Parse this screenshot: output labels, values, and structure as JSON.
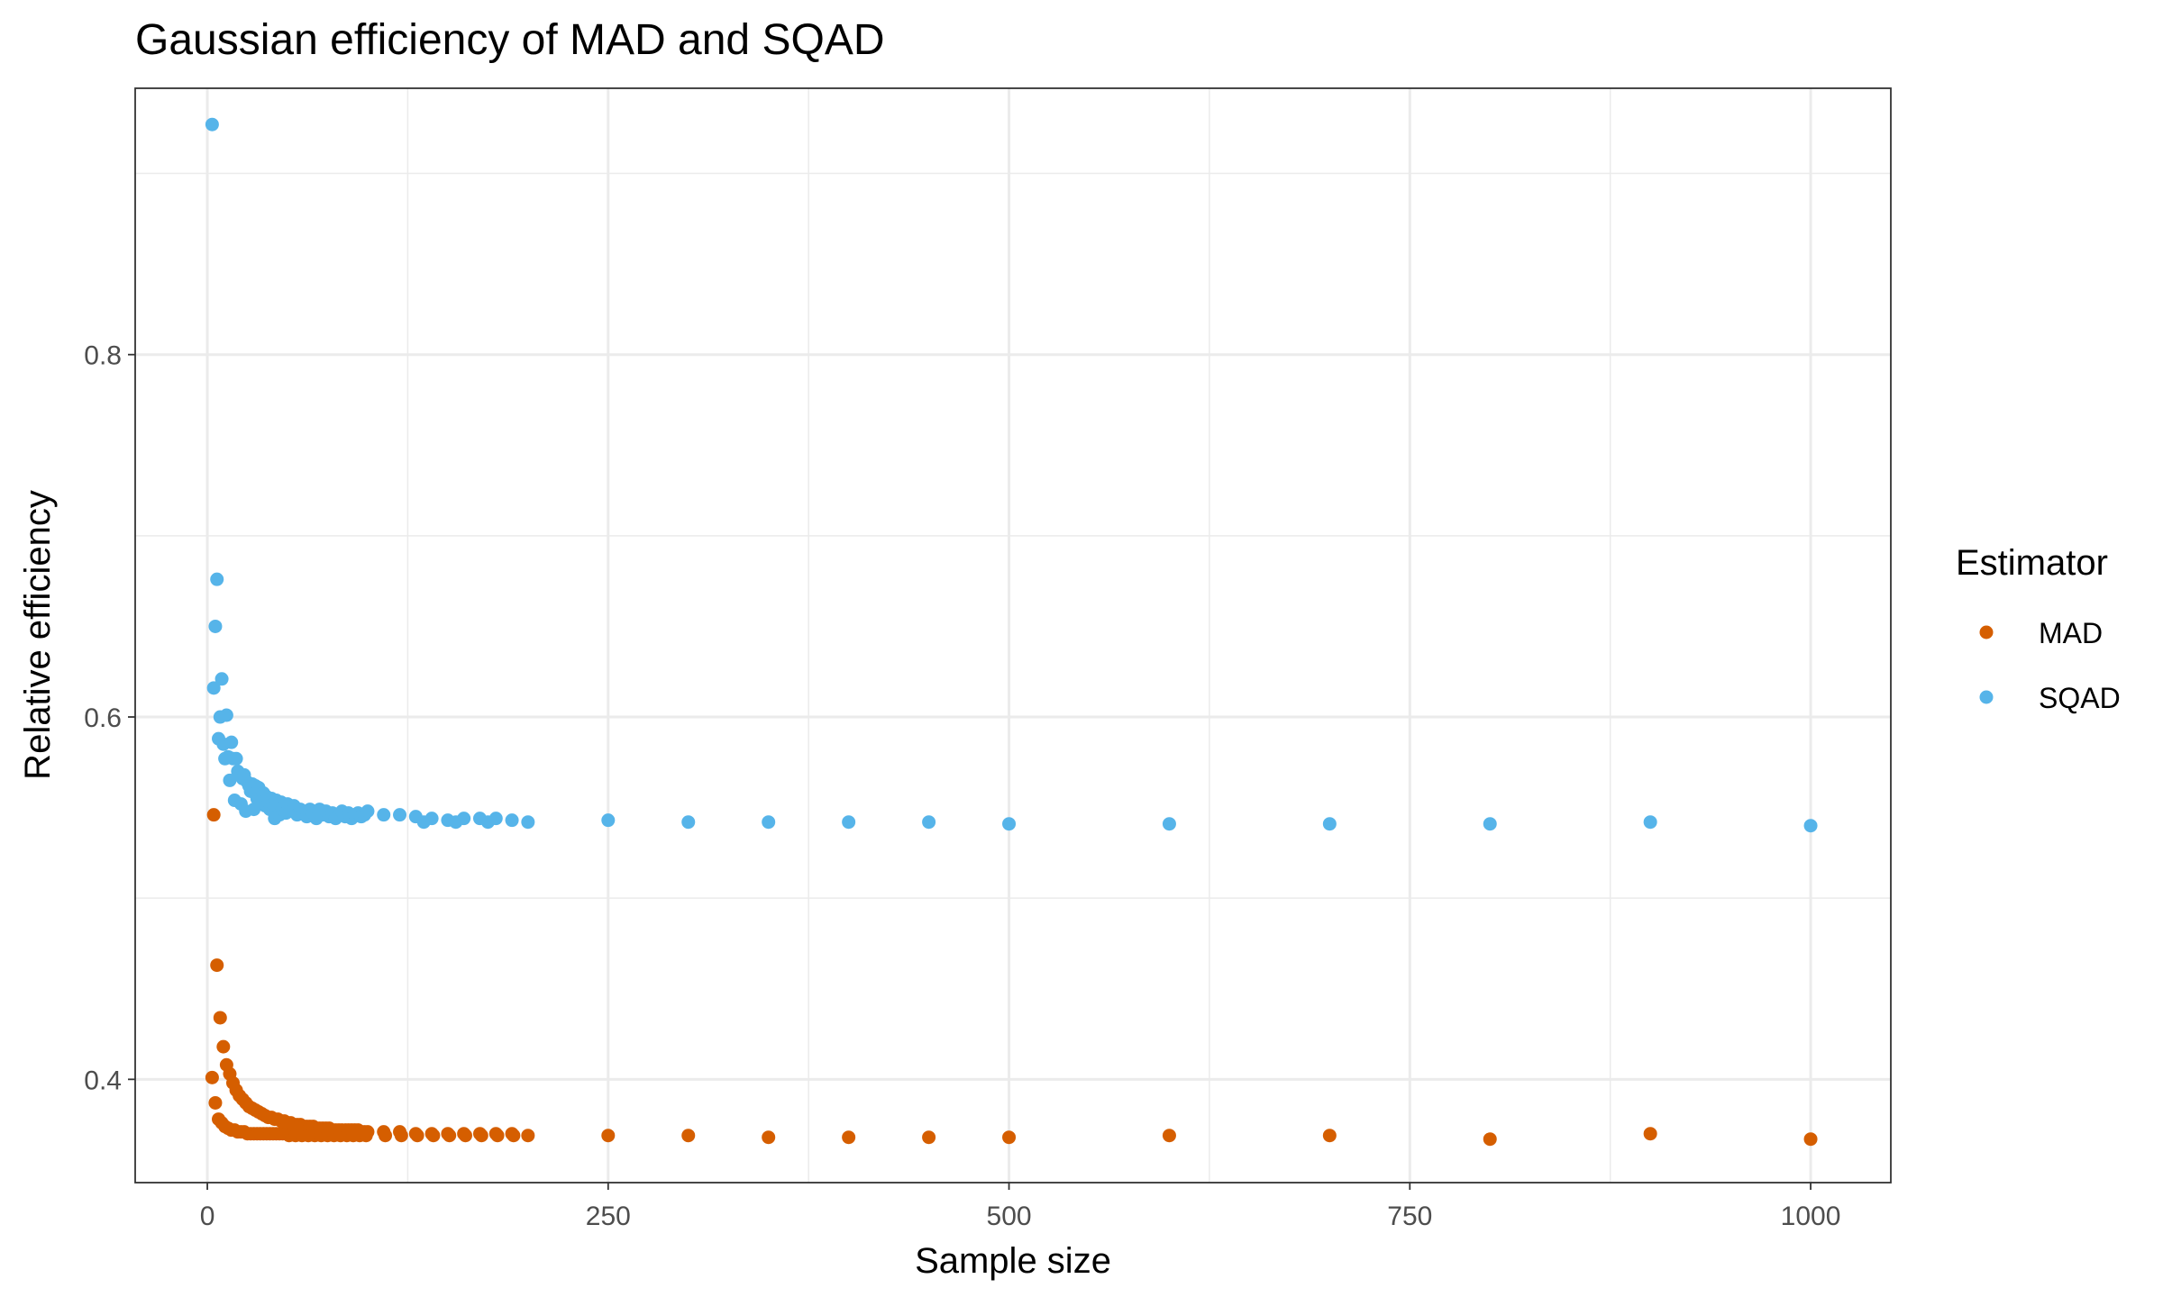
{
  "chart_data": {
    "type": "scatter",
    "title": "Gaussian efficiency of MAD and SQAD",
    "xlabel": "Sample size",
    "ylabel": "Relative efficiency",
    "xlim": [
      -45,
      1050
    ],
    "ylim": [
      0.343,
      0.947
    ],
    "x_ticks": [
      0,
      250,
      500,
      750,
      1000
    ],
    "x_tick_labels": [
      "0",
      "250",
      "500",
      "750",
      "1000"
    ],
    "y_ticks": [
      0.4,
      0.6,
      0.8
    ],
    "y_tick_labels": [
      "0.4",
      "0.6",
      "0.8"
    ],
    "grid": true,
    "legend": {
      "title": "Estimator",
      "position": "right"
    },
    "series": [
      {
        "name": "MAD",
        "color": "#D55E00",
        "points": [
          [
            3,
            0.401
          ],
          [
            4,
            0.546
          ],
          [
            5,
            0.387
          ],
          [
            6,
            0.463
          ],
          [
            7,
            0.378
          ],
          [
            8,
            0.434
          ],
          [
            9,
            0.376
          ],
          [
            10,
            0.418
          ],
          [
            11,
            0.374
          ],
          [
            12,
            0.408
          ],
          [
            13,
            0.373
          ],
          [
            14,
            0.403
          ],
          [
            15,
            0.372
          ],
          [
            16,
            0.398
          ],
          [
            17,
            0.372
          ],
          [
            18,
            0.394
          ],
          [
            19,
            0.371
          ],
          [
            20,
            0.391
          ],
          [
            21,
            0.371
          ],
          [
            22,
            0.389
          ],
          [
            23,
            0.371
          ],
          [
            24,
            0.387
          ],
          [
            25,
            0.37
          ],
          [
            26,
            0.385
          ],
          [
            27,
            0.37
          ],
          [
            28,
            0.384
          ],
          [
            29,
            0.37
          ],
          [
            30,
            0.383
          ],
          [
            31,
            0.37
          ],
          [
            32,
            0.382
          ],
          [
            33,
            0.37
          ],
          [
            34,
            0.381
          ],
          [
            35,
            0.37
          ],
          [
            36,
            0.38
          ],
          [
            37,
            0.37
          ],
          [
            38,
            0.379
          ],
          [
            39,
            0.37
          ],
          [
            40,
            0.379
          ],
          [
            41,
            0.37
          ],
          [
            42,
            0.378
          ],
          [
            43,
            0.37
          ],
          [
            44,
            0.378
          ],
          [
            45,
            0.37
          ],
          [
            46,
            0.377
          ],
          [
            47,
            0.37
          ],
          [
            48,
            0.377
          ],
          [
            49,
            0.37
          ],
          [
            50,
            0.376
          ],
          [
            52,
            0.376
          ],
          [
            54,
            0.375
          ],
          [
            56,
            0.375
          ],
          [
            58,
            0.375
          ],
          [
            60,
            0.374
          ],
          [
            62,
            0.374
          ],
          [
            64,
            0.374
          ],
          [
            66,
            0.374
          ],
          [
            68,
            0.373
          ],
          [
            70,
            0.373
          ],
          [
            72,
            0.373
          ],
          [
            74,
            0.373
          ],
          [
            76,
            0.373
          ],
          [
            78,
            0.372
          ],
          [
            80,
            0.372
          ],
          [
            82,
            0.372
          ],
          [
            84,
            0.372
          ],
          [
            86,
            0.372
          ],
          [
            88,
            0.372
          ],
          [
            90,
            0.372
          ],
          [
            92,
            0.372
          ],
          [
            94,
            0.372
          ],
          [
            96,
            0.371
          ],
          [
            98,
            0.371
          ],
          [
            100,
            0.371
          ],
          [
            51,
            0.369
          ],
          [
            55,
            0.369
          ],
          [
            59,
            0.369
          ],
          [
            63,
            0.369
          ],
          [
            67,
            0.369
          ],
          [
            71,
            0.369
          ],
          [
            75,
            0.369
          ],
          [
            79,
            0.369
          ],
          [
            83,
            0.369
          ],
          [
            87,
            0.369
          ],
          [
            91,
            0.369
          ],
          [
            95,
            0.369
          ],
          [
            99,
            0.369
          ],
          [
            110,
            0.371
          ],
          [
            120,
            0.371
          ],
          [
            130,
            0.37
          ],
          [
            140,
            0.37
          ],
          [
            150,
            0.37
          ],
          [
            160,
            0.37
          ],
          [
            170,
            0.37
          ],
          [
            180,
            0.37
          ],
          [
            190,
            0.37
          ],
          [
            200,
            0.369
          ],
          [
            111,
            0.369
          ],
          [
            121,
            0.369
          ],
          [
            131,
            0.369
          ],
          [
            141,
            0.369
          ],
          [
            151,
            0.369
          ],
          [
            161,
            0.369
          ],
          [
            171,
            0.369
          ],
          [
            181,
            0.369
          ],
          [
            191,
            0.369
          ],
          [
            250,
            0.369
          ],
          [
            300,
            0.369
          ],
          [
            350,
            0.368
          ],
          [
            400,
            0.368
          ],
          [
            450,
            0.368
          ],
          [
            500,
            0.368
          ],
          [
            600,
            0.369
          ],
          [
            700,
            0.369
          ],
          [
            800,
            0.367
          ],
          [
            900,
            0.37
          ],
          [
            1000,
            0.367
          ]
        ]
      },
      {
        "name": "SQAD",
        "color": "#56B4E9",
        "points": [
          [
            3,
            0.927
          ],
          [
            4,
            0.616
          ],
          [
            5,
            0.65
          ],
          [
            6,
            0.676
          ],
          [
            7,
            0.588
          ],
          [
            8,
            0.6
          ],
          [
            9,
            0.621
          ],
          [
            10,
            0.585
          ],
          [
            11,
            0.577
          ],
          [
            12,
            0.601
          ],
          [
            13,
            0.578
          ],
          [
            14,
            0.565
          ],
          [
            15,
            0.586
          ],
          [
            16,
            0.577
          ],
          [
            17,
            0.554
          ],
          [
            18,
            0.577
          ],
          [
            19,
            0.57
          ],
          [
            20,
            0.568
          ],
          [
            21,
            0.552
          ],
          [
            22,
            0.566
          ],
          [
            23,
            0.568
          ],
          [
            24,
            0.548
          ],
          [
            25,
            0.564
          ],
          [
            26,
            0.562
          ],
          [
            27,
            0.559
          ],
          [
            28,
            0.563
          ],
          [
            29,
            0.549
          ],
          [
            30,
            0.562
          ],
          [
            31,
            0.555
          ],
          [
            32,
            0.561
          ],
          [
            33,
            0.553
          ],
          [
            34,
            0.556
          ],
          [
            35,
            0.558
          ],
          [
            36,
            0.551
          ],
          [
            37,
            0.556
          ],
          [
            38,
            0.554
          ],
          [
            39,
            0.549
          ],
          [
            40,
            0.555
          ],
          [
            41,
            0.552
          ],
          [
            42,
            0.544
          ],
          [
            43,
            0.554
          ],
          [
            44,
            0.55
          ],
          [
            45,
            0.546
          ],
          [
            46,
            0.553
          ],
          [
            47,
            0.549
          ],
          [
            48,
            0.551
          ],
          [
            49,
            0.547
          ],
          [
            50,
            0.552
          ],
          [
            52,
            0.548
          ],
          [
            54,
            0.551
          ],
          [
            56,
            0.546
          ],
          [
            58,
            0.549
          ],
          [
            60,
            0.547
          ],
          [
            62,
            0.545
          ],
          [
            64,
            0.549
          ],
          [
            66,
            0.547
          ],
          [
            68,
            0.544
          ],
          [
            70,
            0.549
          ],
          [
            72,
            0.546
          ],
          [
            74,
            0.548
          ],
          [
            76,
            0.545
          ],
          [
            78,
            0.547
          ],
          [
            80,
            0.544
          ],
          [
            82,
            0.546
          ],
          [
            84,
            0.548
          ],
          [
            86,
            0.545
          ],
          [
            88,
            0.547
          ],
          [
            90,
            0.544
          ],
          [
            92,
            0.546
          ],
          [
            94,
            0.547
          ],
          [
            96,
            0.545
          ],
          [
            98,
            0.546
          ],
          [
            100,
            0.548
          ],
          [
            110,
            0.546
          ],
          [
            120,
            0.546
          ],
          [
            130,
            0.545
          ],
          [
            135,
            0.542
          ],
          [
            140,
            0.544
          ],
          [
            150,
            0.543
          ],
          [
            155,
            0.542
          ],
          [
            160,
            0.544
          ],
          [
            170,
            0.544
          ],
          [
            175,
            0.542
          ],
          [
            180,
            0.544
          ],
          [
            190,
            0.543
          ],
          [
            200,
            0.542
          ],
          [
            250,
            0.543
          ],
          [
            300,
            0.542
          ],
          [
            350,
            0.542
          ],
          [
            400,
            0.542
          ],
          [
            450,
            0.542
          ],
          [
            500,
            0.541
          ],
          [
            600,
            0.541
          ],
          [
            700,
            0.541
          ],
          [
            800,
            0.541
          ],
          [
            900,
            0.542
          ],
          [
            1000,
            0.54
          ]
        ]
      }
    ]
  }
}
